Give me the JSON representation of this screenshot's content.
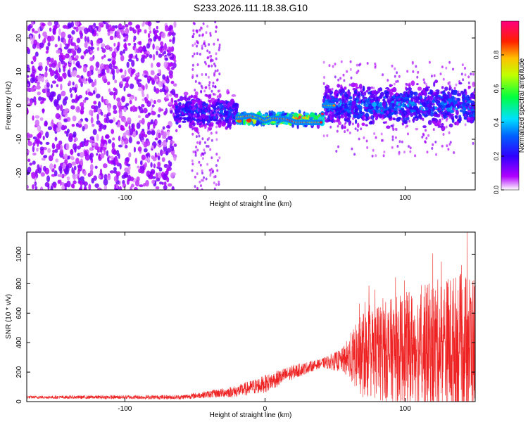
{
  "title": "S233.2026.111.18.38.G10",
  "colors": {
    "snr_line": "#ee2222",
    "axis": "#000000",
    "low_point": "#cc99ff",
    "mid_point": "#7722ee"
  },
  "chart_data": [
    {
      "type": "heatmap",
      "name": "spectrogram",
      "xlabel": "Height of straight line (km)",
      "ylabel": "Frequency (Hz)",
      "xlim": [
        -170,
        150
      ],
      "ylim": [
        -25,
        25
      ],
      "xticks": [
        -100,
        0,
        100
      ],
      "yticks": [
        -20,
        -10,
        0,
        10,
        20
      ],
      "colorbar": {
        "label": "Normalized spectral amplitude",
        "range": [
          0.0,
          1.0
        ],
        "ticks": [
          0.0,
          0.2,
          0.4,
          0.6,
          0.8
        ],
        "tick_labels": [
          "0.0",
          "0.2",
          "0.4",
          "0.6",
          "0.8"
        ]
      },
      "regions": [
        {
          "x_range": [
            -170,
            -64
          ],
          "freq_range": [
            -25,
            25
          ],
          "amplitude": 0.1,
          "description_level": "noise"
        },
        {
          "x_range": [
            -64,
            -20
          ],
          "freq_center": -2,
          "freq_spread": 4,
          "amplitude": 0.3
        },
        {
          "x_range": [
            -20,
            42
          ],
          "freq_center": -4,
          "freq_spread": 1.5,
          "amplitude": 0.9
        },
        {
          "x_range": [
            42,
            150
          ],
          "freq_center": 0,
          "freq_spread": 5,
          "amplitude": 0.35
        }
      ],
      "ridge": [
        [
          -20,
          -3.5
        ],
        [
          -10,
          -3
        ],
        [
          -5,
          -3.5
        ],
        [
          0,
          -4.5
        ],
        [
          5,
          -3.8
        ],
        [
          15,
          -4
        ],
        [
          22,
          -5
        ],
        [
          30,
          -5
        ],
        [
          40,
          -5
        ],
        [
          42,
          0
        ],
        [
          50,
          0
        ]
      ]
    },
    {
      "type": "line",
      "name": "snr",
      "xlabel": "Height of straight line (km)",
      "ylabel": "SNR (10 * v/v)",
      "xlim": [
        -170,
        150
      ],
      "ylim": [
        0,
        1150
      ],
      "xticks": [
        -100,
        0,
        100
      ],
      "yticks": [
        0,
        200,
        400,
        600,
        800,
        1000
      ],
      "envelope": [
        {
          "x": -170,
          "base": 30,
          "amp": 10
        },
        {
          "x": -60,
          "base": 30,
          "amp": 15
        },
        {
          "x": -40,
          "base": 50,
          "amp": 25
        },
        {
          "x": -20,
          "base": 70,
          "amp": 40
        },
        {
          "x": 0,
          "base": 120,
          "amp": 60
        },
        {
          "x": 20,
          "base": 200,
          "amp": 50
        },
        {
          "x": 40,
          "base": 260,
          "amp": 30
        },
        {
          "x": 55,
          "base": 280,
          "amp": 80
        },
        {
          "x": 70,
          "base": 320,
          "amp": 300
        },
        {
          "x": 100,
          "base": 360,
          "amp": 380
        },
        {
          "x": 130,
          "base": 380,
          "amp": 480
        },
        {
          "x": 150,
          "base": 380,
          "amp": 500
        }
      ],
      "max_value": 1150
    }
  ]
}
